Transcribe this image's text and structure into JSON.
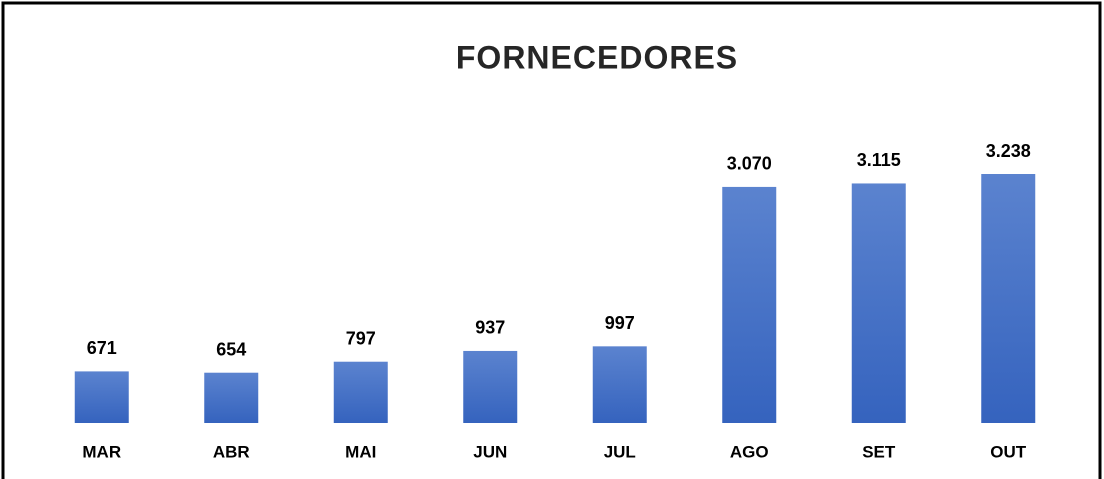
{
  "chart_data": {
    "type": "bar",
    "title": "FORNECEDORES",
    "categories": [
      "MAR",
      "ABR",
      "MAI",
      "JUN",
      "JUL",
      "AGO",
      "SET",
      "OUT"
    ],
    "values": [
      671,
      654,
      797,
      937,
      997,
      3070,
      3115,
      3238
    ],
    "value_labels": [
      "671",
      "654",
      "797",
      "937",
      "997",
      "3.070",
      "3.115",
      "3.238"
    ],
    "color": "#4472c4"
  }
}
